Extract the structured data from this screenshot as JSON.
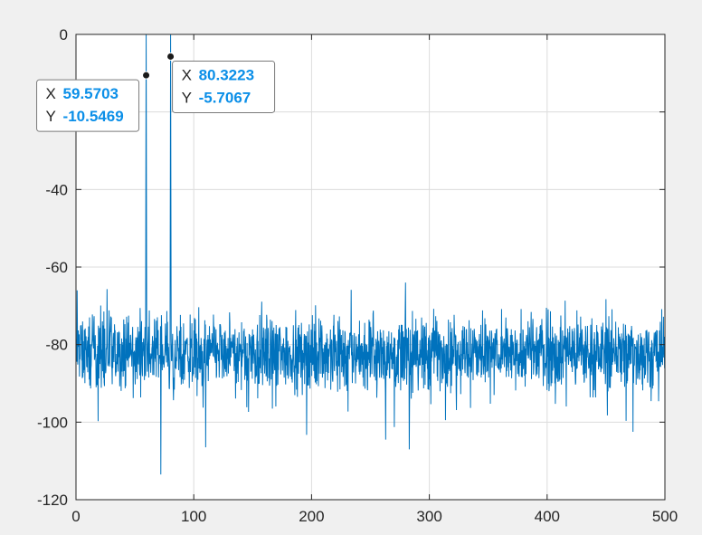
{
  "chart_data": {
    "type": "line",
    "title": "",
    "xlabel": "",
    "ylabel": "",
    "xlim": [
      0,
      500
    ],
    "ylim": [
      -120,
      0
    ],
    "x_ticks": [
      0,
      100,
      200,
      300,
      400,
      500
    ],
    "y_ticks": [
      -120,
      -100,
      -80,
      -60,
      -40,
      -20,
      0
    ],
    "x_tick_labels": [
      "0",
      "100",
      "200",
      "300",
      "400",
      "500"
    ],
    "y_tick_labels": [
      "-120",
      "-100",
      "-80",
      "-60",
      "-40",
      "",
      "0"
    ],
    "grid": true,
    "series_color": "#0072bd",
    "noise_floor": {
      "mean": -82,
      "min": -113.5,
      "max": -64,
      "x_start": 0,
      "x_end": 500
    },
    "peaks": [
      {
        "x": 59.5703,
        "y": -10.5469,
        "top": 0
      },
      {
        "x": 80.3223,
        "y": -5.7067,
        "top": 0
      }
    ],
    "data_tips": [
      {
        "x_key": "X",
        "x_value": "59.5703",
        "y_key": "Y",
        "y_value": "-10.5469",
        "x": 59.5703,
        "y": -10.5469,
        "side": "left"
      },
      {
        "x_key": "X",
        "x_value": "80.3223",
        "y_key": "Y",
        "y_value": "-5.7067",
        "x": 80.3223,
        "y": -5.7067,
        "side": "right"
      }
    ]
  }
}
